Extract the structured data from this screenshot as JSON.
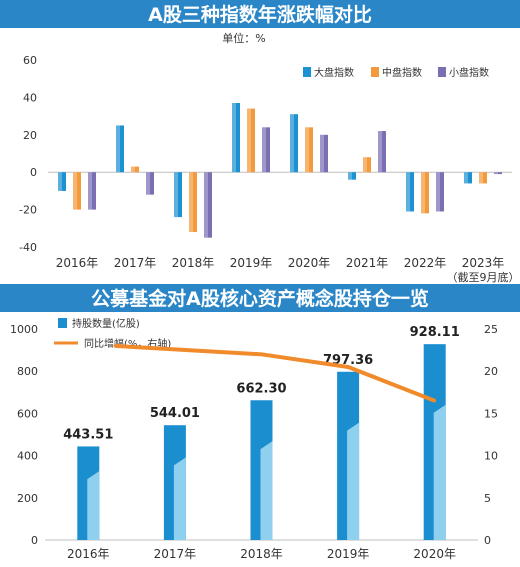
{
  "colors": {
    "banner": "#2a86c6",
    "banner_text": "#ffffff",
    "large": "#1c92d2",
    "mid": "#f39a3c",
    "small": "#7b6fb4",
    "bar2": "#1b8ed0",
    "bar2_light": "#8fd0ef",
    "line": "#f08a2b",
    "axis_text": "#333333",
    "grid": "#bfbfbf"
  },
  "chart_data": [
    {
      "type": "bar",
      "title": "A股三种指数年涨跌幅对比",
      "subtitle": "单位：%",
      "categories": [
        "2016年",
        "2017年",
        "2018年",
        "2019年",
        "2020年",
        "2021年",
        "2022年",
        "2023年"
      ],
      "category_note": "（截至9月底）",
      "series": [
        {
          "name": "大盘指数",
          "values": [
            -10,
            25,
            -24,
            37,
            31,
            -4,
            -21,
            -6
          ]
        },
        {
          "name": "中盘指数",
          "values": [
            -20,
            3,
            -32,
            34,
            24,
            8,
            -22,
            -6
          ]
        },
        {
          "name": "小盘指数",
          "values": [
            -20,
            -12,
            -35,
            24,
            20,
            22,
            -21,
            -1
          ]
        }
      ],
      "ylim": [
        -40,
        60
      ],
      "yticks": [
        -40,
        -20,
        0,
        20,
        40,
        60
      ],
      "legend": "top-right"
    },
    {
      "type": "bar",
      "title": "公募基金对A股核心资产概念股持仓一览",
      "categories": [
        "2016年",
        "2017年",
        "2018年",
        "2019年",
        "2020年"
      ],
      "series": [
        {
          "name": "持股数量(亿股)",
          "values": [
            443.51,
            544.01,
            662.3,
            797.36,
            928.11
          ],
          "labels": [
            "443.51",
            "544.01",
            "662.30",
            "797.36",
            "928.11"
          ]
        },
        {
          "name": "同比增幅(%，右轴)",
          "type": "line",
          "axis": "right",
          "x": [
            "2017年",
            "2018年",
            "2019年",
            "2020年"
          ],
          "values": [
            23,
            22,
            20.5,
            16.5
          ]
        }
      ],
      "ylim": [
        0,
        1000
      ],
      "yticks": [
        0,
        200,
        400,
        600,
        800,
        1000
      ],
      "y2lim": [
        0,
        25
      ],
      "y2ticks": [
        0,
        5,
        10,
        15,
        20,
        25
      ],
      "legend": "top-left"
    }
  ]
}
